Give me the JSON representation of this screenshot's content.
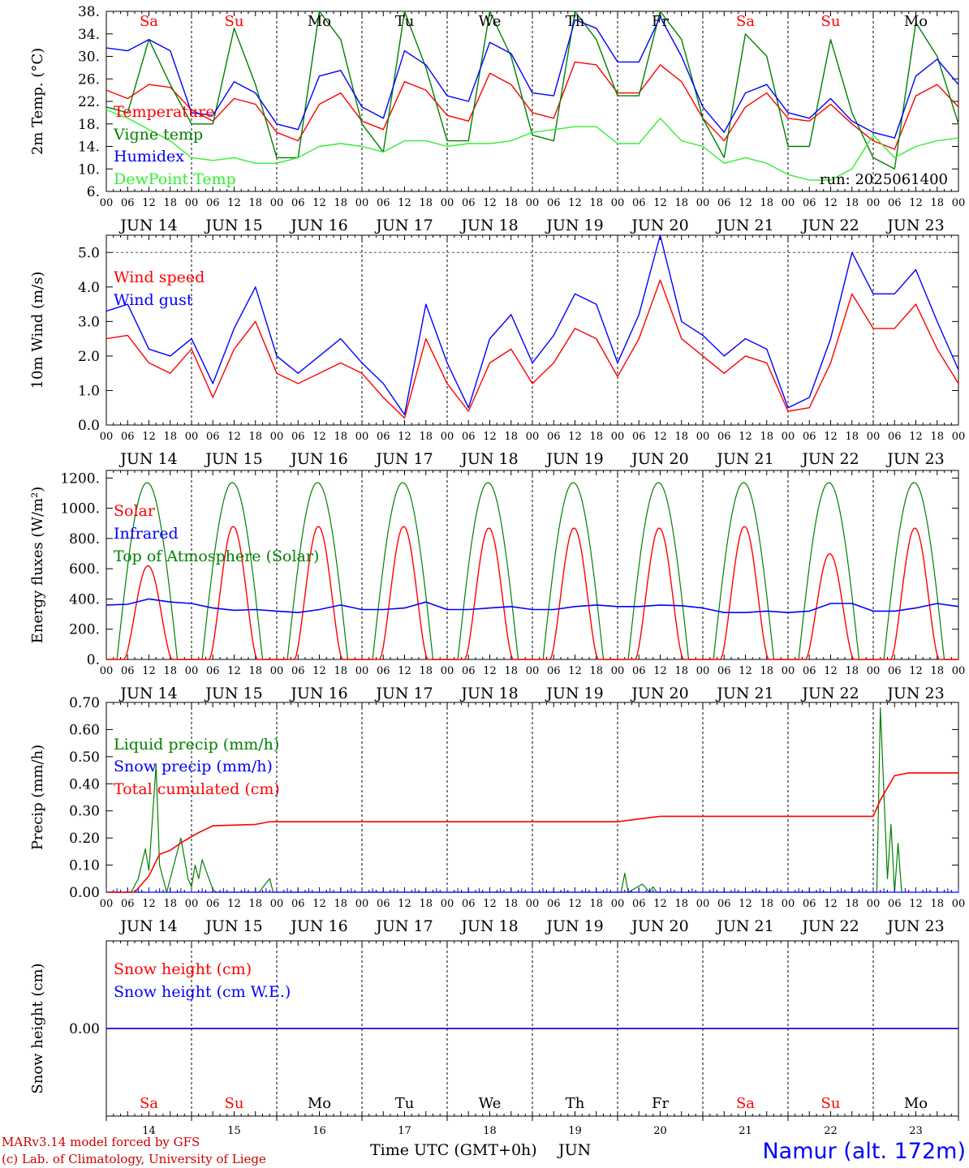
{
  "run_label": "run: 2025061400",
  "footer": {
    "model": "MARv3.14 model forced by GFS",
    "credit": "(c) Lab. of Climatology, University of Liege",
    "x_title": "Time UTC (GMT+0h)",
    "month": "JUN",
    "station": "Namur (alt. 172m)"
  },
  "day_names": [
    "Sa",
    "Su",
    "Mo",
    "Tu",
    "We",
    "Th",
    "Fr",
    "Sa",
    "Su",
    "Mo"
  ],
  "weekend_color": "#ff0000",
  "day_numbers": [
    "14",
    "15",
    "16",
    "17",
    "18",
    "19",
    "20",
    "21",
    "22",
    "23"
  ],
  "date_labels": [
    "JUN 14",
    "JUN 15",
    "JUN 16",
    "JUN 17",
    "JUN 18",
    "JUN 19",
    "JUN 20",
    "JUN 21",
    "JUN 22",
    "JUN 23"
  ],
  "hour_ticks": [
    "00",
    "06",
    "12",
    "18"
  ],
  "chart_data": [
    {
      "type": "line",
      "ylabel": "2m Temp. (°C)",
      "ylim": [
        6,
        38
      ],
      "yticks": [
        "6.",
        "10.",
        "14.",
        "18.",
        "22.",
        "26.",
        "30.",
        "34.",
        "38."
      ],
      "ytick_values": [
        6,
        10,
        14,
        18,
        22,
        26,
        30,
        34,
        38
      ],
      "x": {
        "start": "2025-06-14 00:00",
        "end": "2025-06-24 00:00",
        "step_hours": 6
      },
      "series": [
        {
          "name": "Temperature",
          "color": "#ff0000",
          "values": [
            24,
            22.5,
            25,
            24.5,
            20.5,
            18.5,
            22.5,
            21.5,
            16.5,
            15,
            21.5,
            23.5,
            18.5,
            17,
            25.5,
            24,
            19.5,
            18.5,
            27,
            25,
            20,
            19,
            29,
            28.5,
            23.5,
            23.5,
            28.5,
            25.5,
            19,
            15,
            21,
            23.5,
            19,
            18.5,
            21.5,
            18,
            15,
            13.5,
            23,
            25,
            21
          ]
        },
        {
          "name": "Vigne temp",
          "color": "#008000",
          "values": [
            21,
            20,
            33,
            25,
            18,
            18,
            35,
            25,
            12,
            12,
            38,
            33,
            18,
            13,
            38,
            28,
            15,
            15,
            38,
            30,
            16,
            15,
            40,
            33,
            23,
            23,
            40,
            33,
            19,
            12,
            34,
            30,
            14,
            14,
            33,
            20,
            12,
            10,
            36,
            30,
            18
          ]
        },
        {
          "name": "Humidex",
          "color": "#0000ff",
          "values": [
            31.5,
            31,
            33,
            31,
            20,
            19.5,
            25.5,
            23.5,
            18,
            17,
            26.5,
            27.5,
            21,
            19,
            31,
            28.5,
            23,
            22,
            32.5,
            30.5,
            23.5,
            23,
            36.5,
            35,
            29,
            29,
            37,
            30,
            21,
            16.5,
            23.5,
            25,
            20,
            19,
            22.5,
            18.5,
            16.5,
            15.5,
            26.5,
            29.5,
            25
          ]
        },
        {
          "name": "DewPoint Temp",
          "color": "#33ee33",
          "values": [
            20.5,
            19,
            17,
            15,
            12,
            11.5,
            12,
            11,
            11,
            12,
            14,
            14.5,
            14,
            13,
            15,
            15,
            14,
            14.5,
            14.5,
            15,
            16.5,
            17,
            17.5,
            17.5,
            14.5,
            14.5,
            19,
            15,
            14,
            11,
            12,
            11,
            9,
            8,
            8,
            10,
            16,
            12,
            14,
            15,
            15.5
          ]
        }
      ]
    },
    {
      "type": "line",
      "ylabel": "10m Wind (m/s)",
      "ylim": [
        0,
        5.5
      ],
      "yticks": [
        "0.0",
        "1.0",
        "2.0",
        "3.0",
        "4.0",
        "5.0"
      ],
      "ytick_values": [
        0,
        1,
        2,
        3,
        4,
        5
      ],
      "reference_line": 5.0,
      "series": [
        {
          "name": "Wind speed",
          "color": "#ff0000",
          "values": [
            2.5,
            2.6,
            1.8,
            1.5,
            2.2,
            0.8,
            2.2,
            3.0,
            1.5,
            1.2,
            1.5,
            1.8,
            1.5,
            0.8,
            0.2,
            2.5,
            1.2,
            0.4,
            1.8,
            2.2,
            1.2,
            1.8,
            2.8,
            2.5,
            1.4,
            2.5,
            4.2,
            2.5,
            2.0,
            1.5,
            2.0,
            1.8,
            0.4,
            0.5,
            1.8,
            3.8,
            2.8,
            2.8,
            3.5,
            2.2,
            1.2
          ]
        },
        {
          "name": "Wind gust",
          "color": "#0000ff",
          "values": [
            3.3,
            3.5,
            2.2,
            2.0,
            2.5,
            1.2,
            2.8,
            4.0,
            2.0,
            1.5,
            2.0,
            2.5,
            1.8,
            1.2,
            0.3,
            3.5,
            1.8,
            0.5,
            2.5,
            3.2,
            1.8,
            2.6,
            3.8,
            3.5,
            1.8,
            3.2,
            5.5,
            3.0,
            2.6,
            2.0,
            2.5,
            2.2,
            0.5,
            0.8,
            2.5,
            5.0,
            3.8,
            3.8,
            4.5,
            3.0,
            1.6
          ]
        }
      ]
    },
    {
      "type": "line",
      "ylabel": "Energy fluxes (W/m²)",
      "ylim": [
        0,
        1250
      ],
      "yticks": [
        "0.",
        "200.",
        "400.",
        "600.",
        "800.",
        "1000.",
        "1200."
      ],
      "ytick_values": [
        0,
        200,
        400,
        600,
        800,
        1000,
        1200
      ],
      "series": [
        {
          "name": "Solar",
          "color": "#ff0000",
          "day_peaks": [
            620,
            880,
            880,
            880,
            870,
            870,
            870,
            880,
            700,
            870
          ]
        },
        {
          "name": "Infrared",
          "color": "#0000ff",
          "values": [
            360,
            365,
            400,
            380,
            370,
            340,
            325,
            330,
            320,
            310,
            330,
            360,
            330,
            330,
            340,
            380,
            330,
            330,
            340,
            350,
            330,
            330,
            350,
            360,
            350,
            350,
            360,
            355,
            340,
            310,
            310,
            320,
            310,
            320,
            370,
            370,
            320,
            320,
            340,
            370,
            350
          ]
        },
        {
          "name": "Top of Atmosphere (Solar)",
          "color": "#008000",
          "day_peak": 1170
        }
      ]
    },
    {
      "type": "line",
      "ylabel": "Precip (mm/h)",
      "ylim": [
        0,
        0.7
      ],
      "yticks": [
        "0.00",
        "0.10",
        "0.20",
        "0.30",
        "0.40",
        "0.50",
        "0.60",
        "0.70"
      ],
      "ytick_values": [
        0,
        0.1,
        0.2,
        0.3,
        0.4,
        0.5,
        0.6,
        0.7
      ],
      "series": [
        {
          "name": "Liquid precip (mm/h)",
          "color": "#008000",
          "points": [
            [
              0,
              0
            ],
            [
              7,
              0
            ],
            [
              9,
              0.05
            ],
            [
              11,
              0.16
            ],
            [
              12,
              0.08
            ],
            [
              14,
              0.47
            ],
            [
              15,
              0.1
            ],
            [
              17,
              0
            ],
            [
              21,
              0.2
            ],
            [
              23,
              0.05
            ],
            [
              24,
              0.02
            ],
            [
              25,
              0.1
            ],
            [
              26,
              0.05
            ],
            [
              27,
              0.12
            ],
            [
              30,
              0.01
            ],
            [
              31,
              0
            ],
            [
              43,
              0
            ],
            [
              46,
              0.05
            ],
            [
              47,
              0
            ],
            [
              145,
              0
            ],
            [
              146,
              0.07
            ],
            [
              147,
              0
            ],
            [
              151,
              0.03
            ],
            [
              153,
              0
            ],
            [
              154,
              0.02
            ],
            [
              155,
              0
            ],
            [
              217,
              0
            ],
            [
              218,
              0.68
            ],
            [
              220,
              0.05
            ],
            [
              221,
              0.25
            ],
            [
              222,
              0
            ],
            [
              223,
              0.18
            ],
            [
              224,
              0
            ]
          ]
        },
        {
          "name": "Snow precip (mm/h)",
          "color": "#0000ff",
          "points": [
            [
              0,
              0
            ],
            [
              240,
              0
            ]
          ]
        },
        {
          "name": "Total cumulated (cm)",
          "color": "#ff0000",
          "points": [
            [
              0,
              0
            ],
            [
              8,
              0
            ],
            [
              12,
              0.06
            ],
            [
              15,
              0.14
            ],
            [
              18,
              0.155
            ],
            [
              22,
              0.19
            ],
            [
              26,
              0.22
            ],
            [
              30,
              0.245
            ],
            [
              42,
              0.25
            ],
            [
              46,
              0.26
            ],
            [
              144,
              0.26
            ],
            [
              150,
              0.27
            ],
            [
              156,
              0.28
            ],
            [
              216,
              0.28
            ],
            [
              218,
              0.34
            ],
            [
              222,
              0.43
            ],
            [
              226,
              0.44
            ],
            [
              240,
              0.44
            ]
          ]
        }
      ]
    },
    {
      "type": "line",
      "ylabel": "Snow height (cm)",
      "ylim": [
        -1,
        1
      ],
      "yticks": [
        "0.00"
      ],
      "ytick_values": [
        0
      ],
      "series": [
        {
          "name": "Snow height (cm)",
          "color": "#ff0000",
          "points": [
            [
              0,
              0
            ],
            [
              240,
              0
            ]
          ]
        },
        {
          "name": "Snow height (cm W.E.)",
          "color": "#0000ff",
          "points": [
            [
              0,
              0
            ],
            [
              240,
              0
            ]
          ]
        }
      ]
    }
  ]
}
